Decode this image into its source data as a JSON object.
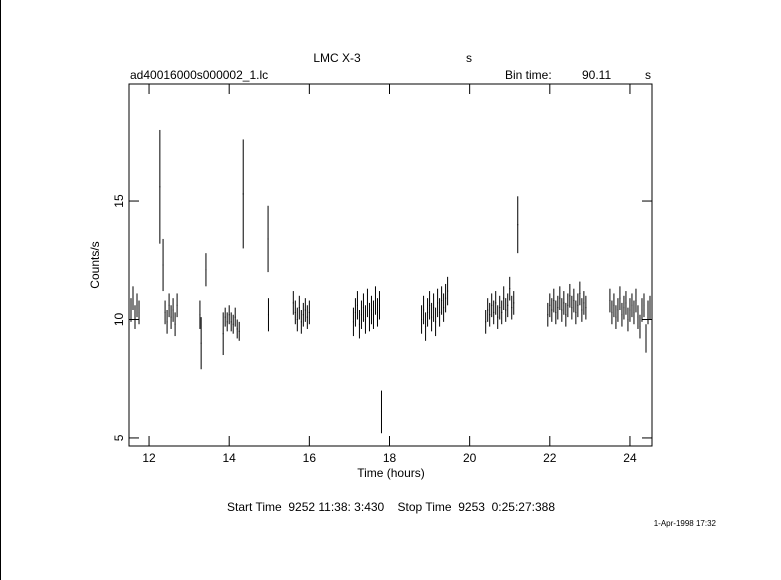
{
  "chart_data": {
    "type": "errorbar",
    "title": "LMC X-3",
    "title_unit": "s",
    "subtitle": "ad40016000s000002_1.lc",
    "bin_label": "Bin time:",
    "bin_value": "90.11",
    "bin_unit": "s",
    "xlabel": "Time (hours)",
    "ylabel": "Counts/s",
    "footer": "Start Time  9252 11:38: 3:430    Stop Time  9253  0:25:27:388",
    "date": "1-Apr-1998 17:32",
    "color": "#000000",
    "xlim": [
      11.5,
      24.55
    ],
    "xticks": [
      12,
      14,
      16,
      18,
      20,
      22,
      24
    ],
    "ylim": [
      4.66,
      19.94
    ],
    "yticks": [
      5,
      10,
      15
    ],
    "bin_halfwidth": 0.0125,
    "series": [
      {
        "name": null,
        "x": [
          11.55,
          11.6,
          11.65,
          11.7,
          11.75,
          12.27,
          12.35,
          12.4,
          12.45,
          12.5,
          12.55,
          12.6,
          12.65,
          12.7,
          13.27,
          13.3,
          13.42,
          13.85,
          13.9,
          13.95,
          14.0,
          14.05,
          14.1,
          14.15,
          14.2,
          14.25,
          14.35,
          14.97,
          14.98,
          15.6,
          15.65,
          15.7,
          15.75,
          15.8,
          15.85,
          15.9,
          15.95,
          16.0,
          17.1,
          17.15,
          17.2,
          17.25,
          17.3,
          17.35,
          17.4,
          17.45,
          17.5,
          17.55,
          17.6,
          17.65,
          17.7,
          17.75,
          17.8,
          18.8,
          18.85,
          18.9,
          18.95,
          19.0,
          19.05,
          19.1,
          19.15,
          19.2,
          19.25,
          19.3,
          19.35,
          19.4,
          19.45,
          20.4,
          20.45,
          20.5,
          20.55,
          20.6,
          20.65,
          20.7,
          20.75,
          20.8,
          20.85,
          20.9,
          20.95,
          21.0,
          21.05,
          21.1,
          21.2,
          21.95,
          22.0,
          22.05,
          22.1,
          22.15,
          22.2,
          22.25,
          22.3,
          22.35,
          22.4,
          22.45,
          22.5,
          22.55,
          22.6,
          22.65,
          22.7,
          22.75,
          22.8,
          22.85,
          22.9,
          23.5,
          23.55,
          23.6,
          23.65,
          23.7,
          23.75,
          23.8,
          23.85,
          23.9,
          23.95,
          24.0,
          24.05,
          24.1,
          24.15,
          24.2,
          24.25,
          24.3,
          24.35,
          24.4,
          24.45,
          24.5
        ],
        "values": [
          10.4,
          10.9,
          10.1,
          10.6,
          10.3,
          15.6,
          12.3,
          10.3,
          9.9,
          10.6,
          10.1,
          10.4,
          9.8,
          10.6,
          10.2,
          9.0,
          12.1,
          9.4,
          10.1,
          9.9,
          10.2,
          9.9,
          9.8,
          10.1,
          9.6,
          9.5,
          15.3,
          13.4,
          10.2,
          10.7,
          10.3,
          10.0,
          10.5,
          9.9,
          10.2,
          10.4,
          10.1,
          10.3,
          9.9,
          10.3,
          10.6,
          9.8,
          10.2,
          10.5,
          10.0,
          10.7,
          10.1,
          10.4,
          10.2,
          10.8,
          10.3,
          10.6,
          6.1,
          10.0,
          10.4,
          9.7,
          10.3,
          10.6,
          10.1,
          10.5,
          9.9,
          10.7,
          10.3,
          10.8,
          10.5,
          10.9,
          11.2,
          9.9,
          10.4,
          10.2,
          10.6,
          10.3,
          10.7,
          10.1,
          10.5,
          10.3,
          10.9,
          10.4,
          10.6,
          11.3,
          10.5,
          10.7,
          14.0,
          10.2,
          10.6,
          10.4,
          10.8,
          10.3,
          10.5,
          10.9,
          10.4,
          10.7,
          10.2,
          10.6,
          11.0,
          10.5,
          10.8,
          10.3,
          10.6,
          11.1,
          10.4,
          10.7,
          10.5,
          10.8,
          10.3,
          10.6,
          10.1,
          10.4,
          10.9,
          10.2,
          10.5,
          10.7,
          10.0,
          10.4,
          10.6,
          10.3,
          10.8,
          10.1,
          9.7,
          10.4,
          10.6,
          9.2,
          10.3,
          10.5
        ],
        "errors": [
          0.5,
          0.5,
          0.5,
          0.5,
          0.5,
          2.4,
          1.1,
          0.5,
          0.5,
          0.5,
          0.5,
          0.5,
          0.5,
          0.5,
          0.6,
          1.1,
          0.7,
          0.9,
          0.4,
          0.4,
          0.4,
          0.4,
          0.4,
          0.4,
          0.4,
          0.4,
          2.3,
          1.4,
          0.7,
          0.5,
          0.5,
          0.5,
          0.5,
          0.5,
          0.5,
          0.5,
          0.5,
          0.5,
          0.6,
          0.6,
          0.6,
          0.6,
          0.6,
          0.6,
          0.6,
          0.6,
          0.6,
          0.6,
          0.6,
          0.6,
          0.6,
          0.6,
          0.9,
          0.6,
          0.6,
          0.6,
          0.6,
          0.6,
          0.6,
          0.6,
          0.6,
          0.6,
          0.6,
          0.6,
          0.6,
          0.6,
          0.6,
          0.5,
          0.5,
          0.5,
          0.5,
          0.5,
          0.5,
          0.5,
          0.5,
          0.5,
          0.5,
          0.5,
          0.5,
          0.5,
          0.5,
          0.5,
          1.2,
          0.5,
          0.5,
          0.5,
          0.5,
          0.5,
          0.5,
          0.5,
          0.5,
          0.5,
          0.5,
          0.5,
          0.5,
          0.5,
          0.5,
          0.5,
          0.5,
          0.5,
          0.5,
          0.5,
          0.5,
          0.5,
          0.5,
          0.5,
          0.5,
          0.5,
          0.5,
          0.5,
          0.5,
          0.5,
          0.5,
          0.5,
          0.5,
          0.5,
          0.5,
          0.5,
          0.5,
          0.5,
          0.5,
          0.6,
          0.5,
          0.5
        ]
      }
    ]
  }
}
